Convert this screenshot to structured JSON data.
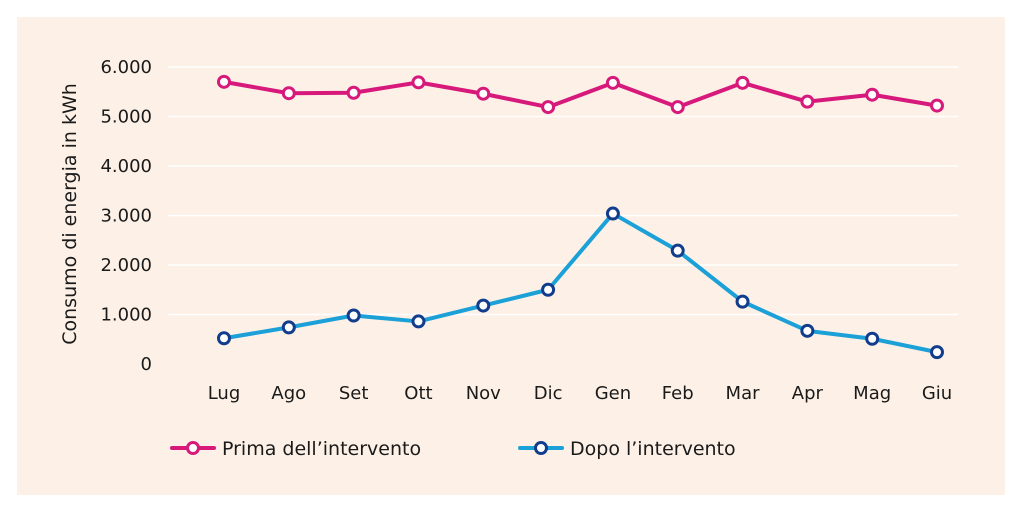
{
  "chart_data": {
    "type": "line",
    "title": "",
    "xlabel": "",
    "ylabel": "Consumo di energia in kWh",
    "categories": [
      "Lug",
      "Ago",
      "Set",
      "Ott",
      "Nov",
      "Dic",
      "Gen",
      "Feb",
      "Mar",
      "Apr",
      "Mag",
      "Giu"
    ],
    "ylim": [
      0,
      6000
    ],
    "yticks": [
      0,
      1000,
      2000,
      3000,
      4000,
      5000,
      6000
    ],
    "ytick_labels": [
      "0",
      "1.000",
      "2.000",
      "3.000",
      "4.000",
      "5.000",
      "6.000"
    ],
    "grid": true,
    "legend_position": "bottom",
    "series": [
      {
        "name": "Prima dell’intervento",
        "color": "#d6197a",
        "values": [
          5700,
          5470,
          5480,
          5690,
          5460,
          5190,
          5680,
          5190,
          5680,
          5300,
          5440,
          5220
        ]
      },
      {
        "name": "Dopo l’intervento",
        "color": "#1ba0d8",
        "marker_color": "#123d8c",
        "values": [
          520,
          740,
          980,
          860,
          1180,
          1500,
          3040,
          2290,
          1260,
          670,
          510,
          240
        ]
      }
    ]
  }
}
